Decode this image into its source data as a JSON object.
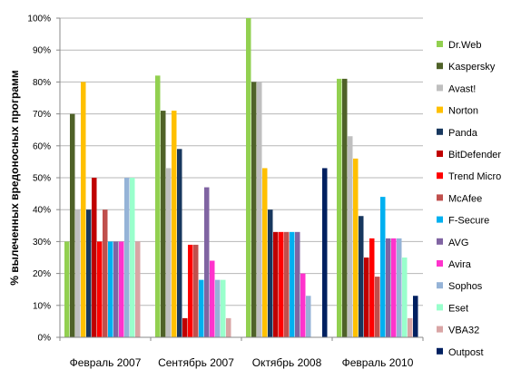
{
  "chart_data": {
    "type": "bar",
    "ylabel": "% вылеченных вредоносных программ",
    "xlabel": "",
    "ylim": [
      0,
      100
    ],
    "yticks": [
      0,
      10,
      20,
      30,
      40,
      50,
      60,
      70,
      80,
      90,
      100
    ],
    "ytick_labels": [
      "0%",
      "10%",
      "20%",
      "30%",
      "40%",
      "50%",
      "60%",
      "70%",
      "80%",
      "90%",
      "100%"
    ],
    "categories": [
      "Февраль 2007",
      "Сентябрь 2007",
      "Октябрь 2008",
      "Февраль 2010"
    ],
    "grid": true,
    "legend_position": "right",
    "series": [
      {
        "name": "Dr.Web",
        "color": "#92d050",
        "values": [
          30,
          82,
          100,
          81
        ]
      },
      {
        "name": "Kaspersky",
        "color": "#4f6228",
        "values": [
          70,
          71,
          80,
          81
        ]
      },
      {
        "name": "Avast!",
        "color": "#bfbfbf",
        "values": [
          40,
          53,
          80,
          63
        ]
      },
      {
        "name": "Norton",
        "color": "#ffc000",
        "values": [
          80,
          71,
          53,
          56
        ]
      },
      {
        "name": "Panda",
        "color": "#17375e",
        "values": [
          40,
          59,
          40,
          38
        ]
      },
      {
        "name": "BitDefender",
        "color": "#c00000",
        "values": [
          50,
          6,
          33,
          25
        ]
      },
      {
        "name": "Trend Micro",
        "color": "#ff0000",
        "values": [
          30,
          29,
          33,
          31
        ]
      },
      {
        "name": "McAfee",
        "color": "#c0504d",
        "values": [
          40,
          29,
          33,
          19
        ]
      },
      {
        "name": "F-Secure",
        "color": "#00b0f0",
        "values": [
          30,
          18,
          33,
          44
        ]
      },
      {
        "name": "AVG",
        "color": "#8064a2",
        "values": [
          30,
          47,
          33,
          31
        ]
      },
      {
        "name": "Avira",
        "color": "#ff33cc",
        "values": [
          30,
          24,
          20,
          31
        ]
      },
      {
        "name": "Sophos",
        "color": "#95b3d7",
        "values": [
          50,
          18,
          13,
          31
        ]
      },
      {
        "name": "Eset",
        "color": "#99ffcc",
        "values": [
          50,
          18,
          0,
          25
        ]
      },
      {
        "name": "VBA32",
        "color": "#d9a5a5",
        "values": [
          30,
          6,
          0,
          6
        ]
      },
      {
        "name": "Outpost",
        "color": "#002060",
        "values": [
          0,
          0,
          53,
          13
        ]
      }
    ]
  }
}
